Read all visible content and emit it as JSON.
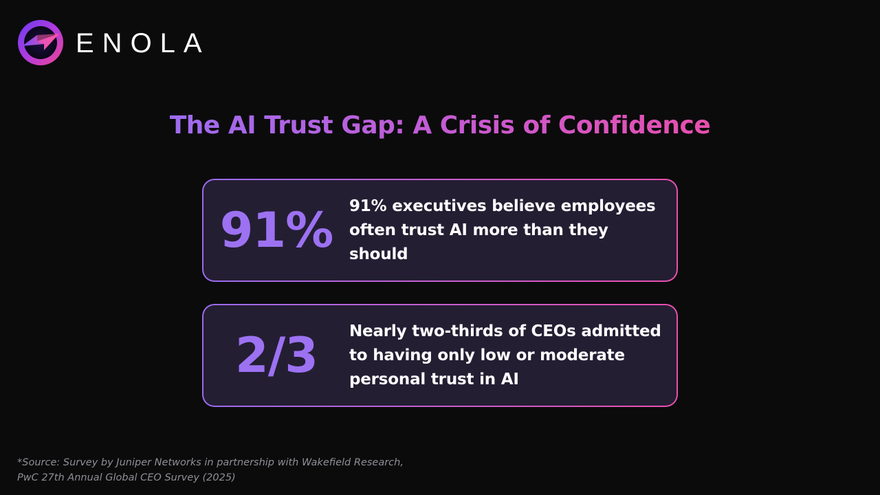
{
  "brand": {
    "name": "ENOLA",
    "logo_icon": "enola-lightning-logo-icon"
  },
  "colors": {
    "background": "#0b0b0c",
    "accent_purple": "#9c72f2",
    "accent_pink": "#ea4fae",
    "card_fill": "#241e33",
    "source_gray": "#8f8f96"
  },
  "slide": {
    "title": "The AI Trust Gap: A Crisis of Confidence",
    "stats": [
      {
        "value": "91%",
        "text": "91% executives believe employees\noften trust AI more than they should"
      },
      {
        "value": "2/3",
        "text": "Nearly two-thirds of CEOs admitted\nto having only low or moderate\npersonal trust in AI"
      }
    ],
    "source": "*Source: Survey by Juniper Networks in partnership with Wakefield Research,\nPwC 27th Annual Global CEO Survey (2025)"
  }
}
